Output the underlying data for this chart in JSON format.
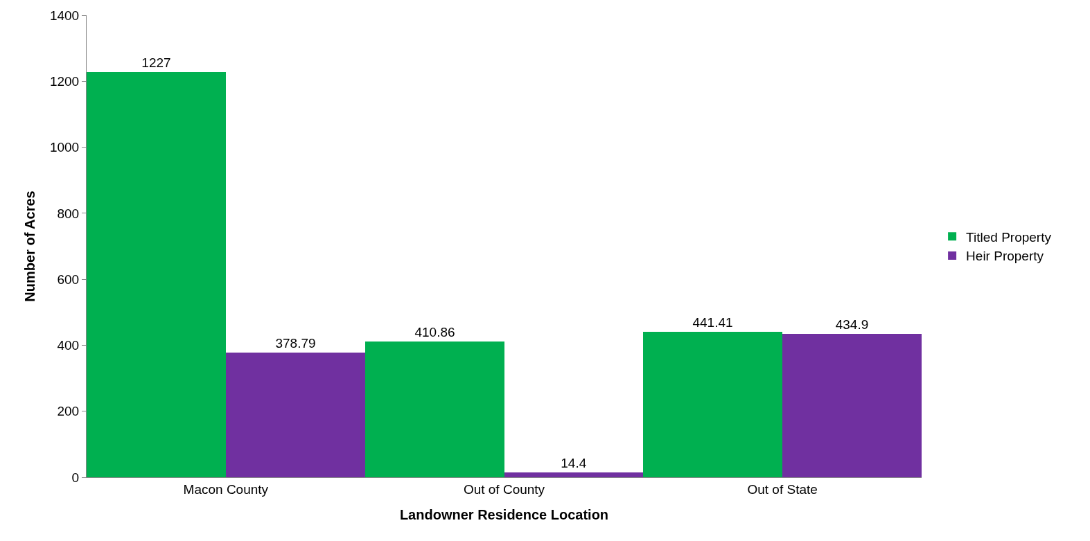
{
  "chart_data": {
    "type": "bar",
    "xlabel": "Landowner Residence Location",
    "ylabel": "Number of Acres",
    "categories": [
      "Macon County",
      "Out of County",
      "Out of State"
    ],
    "series": [
      {
        "name": "Titled Property",
        "color": "#00b050",
        "values": [
          1227,
          410.86,
          441.41
        ]
      },
      {
        "name": "Heir Property",
        "color": "#7030a0",
        "values": [
          378.79,
          14.4,
          434.9
        ]
      }
    ],
    "ylim": [
      0,
      1400
    ],
    "yticks": [
      0,
      200,
      400,
      600,
      800,
      1000,
      1200,
      1400
    ],
    "grid": false,
    "legend": "right",
    "data_labels": true
  }
}
